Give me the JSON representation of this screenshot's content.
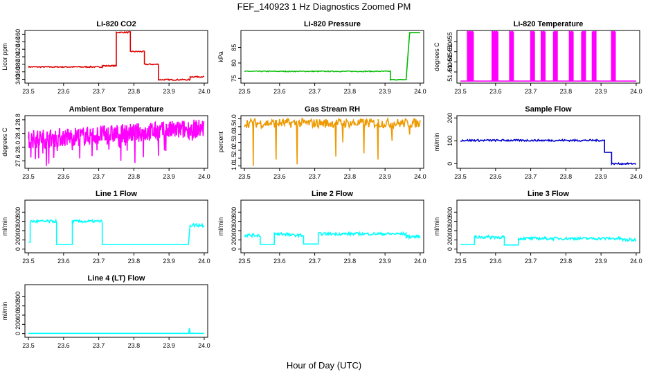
{
  "title": "FEF_140923  1 Hz Diagnostics Zoomed PM",
  "xlabel": "Hour of Day (UTC)",
  "chart_data": [
    {
      "type": "line",
      "title": "Li-820 CO2",
      "ylabel": "Licor ppm",
      "color": "#dd0000",
      "xlim": [
        23.49,
        24.01
      ],
      "ylim": [
        330,
        470
      ],
      "xticks": [
        "23.5",
        "23.6",
        "23.7",
        "23.8",
        "23.9",
        "24.0"
      ],
      "yticks": [
        340,
        360,
        380,
        400,
        420,
        440,
        460
      ],
      "segments": [
        [
          23.5,
          23.71,
          373,
          1.5
        ],
        [
          23.71,
          23.75,
          376,
          1.5
        ],
        [
          23.75,
          23.79,
          465,
          1.5
        ],
        [
          23.79,
          23.83,
          414,
          1.5
        ],
        [
          23.83,
          23.87,
          380,
          1.5
        ],
        [
          23.87,
          23.96,
          339,
          1.5
        ],
        [
          23.96,
          24.0,
          347,
          1.5
        ]
      ]
    },
    {
      "type": "line",
      "title": "Li-820 Pressure",
      "ylabel": "kPa",
      "color": "#00bb00",
      "xlim": [
        23.49,
        24.01
      ],
      "ylim": [
        73.5,
        90.5
      ],
      "xticks": [
        "23.5",
        "23.6",
        "23.7",
        "23.8",
        "23.9",
        "24.0"
      ],
      "yticks": [
        75,
        80,
        85
      ],
      "segments": [
        [
          23.5,
          23.915,
          77.3,
          0.15
        ],
        [
          23.915,
          23.96,
          74.6,
          0.1
        ],
        [
          23.97,
          24.0,
          89.8,
          0.1
        ]
      ]
    },
    {
      "type": "line",
      "title": "Li-820 Temperature",
      "ylabel": "degrees C",
      "color": "#ff00ff",
      "xlim": [
        23.49,
        24.01
      ],
      "ylim": [
        51.4345,
        51.4605
      ],
      "xticks": [
        "23.5",
        "23.6",
        "23.7",
        "23.8",
        "23.9",
        "24.0"
      ],
      "yticks": [
        "51.440",
        "51.445",
        "51.450",
        "51.455"
      ],
      "segments": [
        [
          23.5,
          24.0,
          51.4355,
          0
        ]
      ],
      "spikes": [
        [
          23.52,
          23.535
        ],
        [
          23.59,
          23.605
        ],
        [
          23.64,
          23.65
        ],
        [
          23.7,
          23.71
        ],
        [
          23.73,
          23.74
        ],
        [
          23.765,
          23.775
        ],
        [
          23.81,
          23.82
        ],
        [
          23.845,
          23.855
        ],
        [
          23.875,
          23.885
        ],
        [
          23.93,
          23.94
        ]
      ]
    },
    {
      "type": "line",
      "title": "Ambient Box Temperature",
      "ylabel": "degrees C",
      "color": "#ff00ff",
      "xlim": [
        23.49,
        24.01
      ],
      "ylim": [
        27.38,
        28.92
      ],
      "xticks": [
        "23.5",
        "23.6",
        "23.7",
        "23.8",
        "23.9",
        "24.0"
      ],
      "yticks": [
        "27.6",
        "28.0",
        "28.4",
        "28.8"
      ],
      "ramp": [
        23.5,
        24.0,
        28.22,
        28.55,
        0.28
      ]
    },
    {
      "type": "line",
      "title": "Gas Stream RH",
      "ylabel": "percent",
      "color": "#ee9900",
      "xlim": [
        23.49,
        24.01
      ],
      "ylim": [
        0.85,
        4.2
      ],
      "xticks": [
        "23.5",
        "23.6",
        "23.7",
        "23.8",
        "23.9",
        "24.0"
      ],
      "yticks": [
        "1.0",
        "1.5",
        "2.0",
        "2.5",
        "3.0",
        "3.5",
        "4.0"
      ],
      "segments": [
        [
          23.5,
          24.0,
          3.72,
          0.3
        ]
      ],
      "dips": [
        [
          23.525,
          1.0
        ],
        [
          23.59,
          1.4
        ],
        [
          23.65,
          1.1
        ],
        [
          23.76,
          1.6
        ],
        [
          23.78,
          2.5
        ],
        [
          23.84,
          1.8
        ],
        [
          23.88,
          1.4
        ],
        [
          23.92,
          2.6
        ],
        [
          23.97,
          3.0
        ]
      ]
    },
    {
      "type": "line",
      "title": "Sample Flow",
      "ylabel": "ml/min",
      "color": "#0000cc",
      "xlim": [
        23.49,
        24.01
      ],
      "ylim": [
        -20,
        210
      ],
      "xticks": [
        "23.5",
        "23.6",
        "23.7",
        "23.8",
        "23.9",
        "24.0"
      ],
      "yticks": [
        0,
        100,
        200
      ],
      "segments": [
        [
          23.5,
          23.91,
          102,
          4
        ],
        [
          23.91,
          23.93,
          50,
          0
        ],
        [
          23.93,
          24.0,
          0,
          3
        ]
      ]
    },
    {
      "type": "line",
      "title": "Line 1 Flow",
      "ylabel": "ml/min",
      "color": "#00ffff",
      "xlim": [
        23.49,
        24.01
      ],
      "ylim": [
        -80,
        1060
      ],
      "xticks": [
        "23.5",
        "23.6",
        "23.7",
        "23.8",
        "23.9",
        "24.0"
      ],
      "yticks": [
        0,
        200,
        400,
        600,
        800
      ],
      "segments": [
        [
          23.5,
          23.505,
          150,
          0
        ],
        [
          23.505,
          23.58,
          600,
          30
        ],
        [
          23.58,
          23.625,
          100,
          0
        ],
        [
          23.625,
          23.71,
          600,
          30
        ],
        [
          23.71,
          23.955,
          100,
          0
        ],
        [
          23.96,
          24.0,
          520,
          40
        ]
      ]
    },
    {
      "type": "line",
      "title": "Line 2 Flow",
      "ylabel": "ml/min",
      "color": "#00ffff",
      "xlim": [
        23.49,
        24.01
      ],
      "ylim": [
        -80,
        1060
      ],
      "xticks": [
        "23.5",
        "23.6",
        "23.7",
        "23.8",
        "23.9",
        "24.0"
      ],
      "yticks": [
        0,
        200,
        400,
        600,
        800
      ],
      "segments": [
        [
          23.5,
          23.545,
          300,
          35
        ],
        [
          23.545,
          23.585,
          100,
          0
        ],
        [
          23.585,
          23.625,
          330,
          40
        ],
        [
          23.625,
          23.668,
          300,
          30
        ],
        [
          23.668,
          23.71,
          110,
          0
        ],
        [
          23.71,
          23.96,
          330,
          30
        ],
        [
          23.96,
          24.0,
          270,
          35
        ]
      ]
    },
    {
      "type": "line",
      "title": "Line 3 Flow",
      "ylabel": "ml/min",
      "color": "#00ffff",
      "xlim": [
        23.49,
        24.01
      ],
      "ylim": [
        -80,
        1060
      ],
      "xticks": [
        "23.5",
        "23.6",
        "23.7",
        "23.8",
        "23.9",
        "24.0"
      ],
      "yticks": [
        0,
        200,
        400,
        600,
        800
      ],
      "segments": [
        [
          23.5,
          23.54,
          100,
          0
        ],
        [
          23.54,
          23.625,
          260,
          35
        ],
        [
          23.625,
          23.665,
          90,
          0
        ],
        [
          23.665,
          23.96,
          230,
          30
        ],
        [
          23.96,
          24.0,
          200,
          35
        ]
      ]
    },
    {
      "type": "line",
      "title": "Line 4 (LT) Flow",
      "ylabel": "ml/min",
      "color": "#00ffff",
      "xlim": [
        23.49,
        24.01
      ],
      "ylim": [
        -80,
        1060
      ],
      "xticks": [
        "23.5",
        "23.6",
        "23.7",
        "23.8",
        "23.9",
        "24.0"
      ],
      "yticks": [
        0,
        200,
        400,
        600,
        800
      ],
      "segments": [
        [
          23.5,
          24.0,
          5,
          0
        ]
      ],
      "spikeAt": [
        23.958,
        120
      ]
    }
  ]
}
